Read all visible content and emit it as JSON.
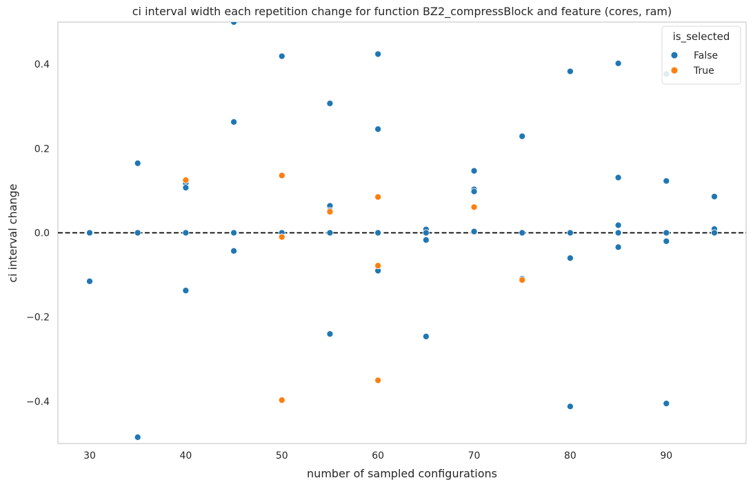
{
  "chart_data": {
    "type": "scatter",
    "title": "ci interval width each repetition change for function BZ2_compressBlock and feature (cores, ram)",
    "xlabel": "number of sampled configurations",
    "ylabel": "ci interval change",
    "xlim": [
      26.7,
      98.3
    ],
    "ylim": [
      -0.5,
      0.5
    ],
    "xticks": [
      30,
      40,
      50,
      60,
      70,
      80,
      90
    ],
    "yticks": [
      -0.4,
      -0.2,
      0.0,
      0.2,
      0.4
    ],
    "ytick_labels": [
      "−0.4",
      "−0.2",
      "0.0",
      "0.2",
      "0.4"
    ],
    "grid": false,
    "reference_line": {
      "y": 0.0,
      "style": "dashed",
      "color": "#000000"
    },
    "legend": {
      "title": "is_selected",
      "placement": "top-right",
      "entries": [
        {
          "label": "False",
          "color": "#1f77b4"
        },
        {
          "label": "True",
          "color": "#ff7f0e"
        }
      ]
    },
    "series": [
      {
        "name": "False",
        "color": "#1f77b4",
        "points": [
          [
            30,
            0.0
          ],
          [
            30,
            -0.115
          ],
          [
            35,
            0.165
          ],
          [
            35,
            0.0
          ],
          [
            35,
            -0.485
          ],
          [
            40,
            0.118
          ],
          [
            40,
            0.107
          ],
          [
            40,
            0.0
          ],
          [
            40,
            -0.137
          ],
          [
            45,
            0.5
          ],
          [
            45,
            0.263
          ],
          [
            45,
            0.0
          ],
          [
            45,
            -0.043
          ],
          [
            50,
            0.419
          ],
          [
            50,
            0.0
          ],
          [
            55,
            0.307
          ],
          [
            55,
            0.064
          ],
          [
            55,
            0.053
          ],
          [
            55,
            0.0
          ],
          [
            55,
            -0.24
          ],
          [
            60,
            0.424
          ],
          [
            60,
            0.246
          ],
          [
            60,
            0.0
          ],
          [
            60,
            -0.09
          ],
          [
            65,
            0.008
          ],
          [
            65,
            0.0
          ],
          [
            65,
            -0.017
          ],
          [
            65,
            -0.246
          ],
          [
            70,
            0.147
          ],
          [
            70,
            0.103
          ],
          [
            70,
            0.098
          ],
          [
            70,
            0.003
          ],
          [
            75,
            0.229
          ],
          [
            75,
            0.0
          ],
          [
            75,
            -0.109
          ],
          [
            80,
            0.383
          ],
          [
            80,
            0.0
          ],
          [
            80,
            -0.06
          ],
          [
            80,
            -0.412
          ],
          [
            85,
            0.402
          ],
          [
            85,
            0.131
          ],
          [
            85,
            0.018
          ],
          [
            85,
            0.0
          ],
          [
            85,
            -0.034
          ],
          [
            90,
            0.377
          ],
          [
            90,
            0.123
          ],
          [
            90,
            0.0
          ],
          [
            90,
            -0.02
          ],
          [
            90,
            -0.405
          ],
          [
            95,
            0.086
          ],
          [
            95,
            0.009
          ],
          [
            95,
            0.0
          ]
        ]
      },
      {
        "name": "True",
        "color": "#ff7f0e",
        "points": [
          [
            40,
            0.125
          ],
          [
            50,
            0.136
          ],
          [
            50,
            -0.01
          ],
          [
            50,
            -0.397
          ],
          [
            55,
            0.05
          ],
          [
            60,
            0.085
          ],
          [
            60,
            -0.078
          ],
          [
            60,
            -0.35
          ],
          [
            70,
            0.061
          ],
          [
            75,
            -0.112
          ]
        ]
      }
    ]
  }
}
